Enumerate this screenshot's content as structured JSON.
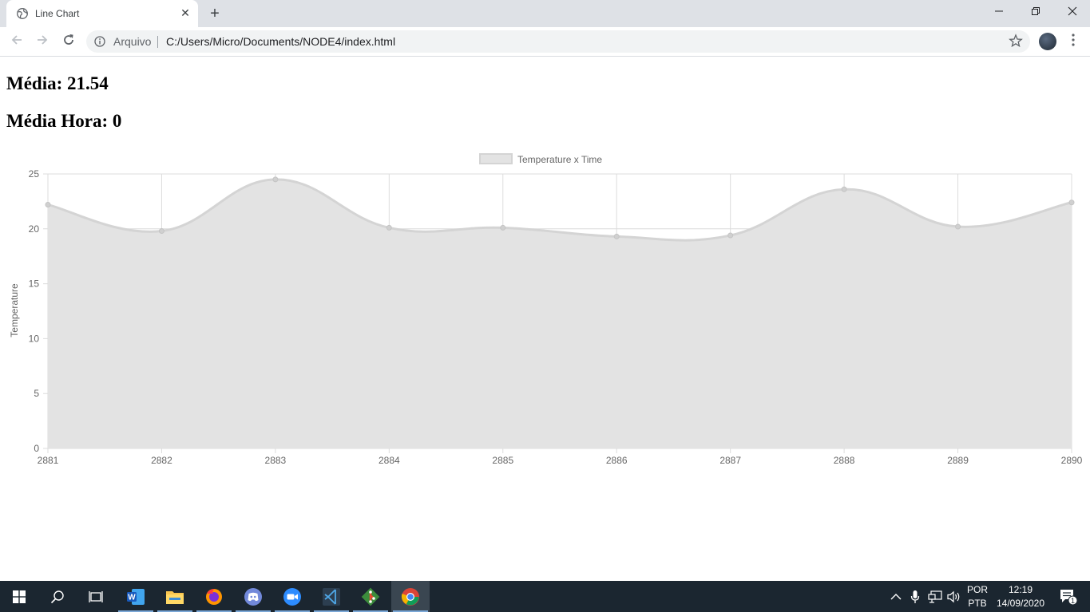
{
  "browser": {
    "tab_title": "Line Chart",
    "tab_close": "✕",
    "new_tab": "+",
    "omnibox_scheme": "Arquivo",
    "omnibox_url": "C:/Users/Micro/Documents/NODE4/index.html"
  },
  "page": {
    "media_text": "Média: 21.54",
    "media_hora_text": "Média Hora: 0"
  },
  "chart_data": {
    "type": "line",
    "legend_label": "Temperature x Time",
    "ylabel": "Temperature",
    "xlabel": "",
    "x": [
      2881,
      2882,
      2883,
      2884,
      2885,
      2886,
      2887,
      2888,
      2889,
      2890
    ],
    "series": [
      {
        "name": "Temperature x Time",
        "values": [
          22.2,
          19.8,
          24.5,
          20.1,
          20.1,
          19.3,
          19.4,
          23.6,
          20.2,
          22.4
        ]
      }
    ],
    "ylim": [
      0,
      25
    ],
    "yticks": [
      0,
      5,
      10,
      15,
      20,
      25
    ],
    "fill": true,
    "grid": true,
    "legend_position": "top",
    "colors": {
      "line": "#d9d9d9",
      "fill": "#e3e3e3",
      "grid": "#dcdcdc",
      "tick_text": "#666666"
    }
  },
  "taskbar": {
    "lang_top": "POR",
    "lang_bottom": "PTB",
    "time": "12:19",
    "date": "14/09/2020",
    "notification_count": "1",
    "apps": [
      "start-icon",
      "search-icon",
      "task-view-icon",
      "word-icon",
      "file-explorer-icon",
      "firefox-icon",
      "discord-icon",
      "zoom-icon",
      "vscode-icon",
      "git-icon",
      "chrome-icon"
    ]
  }
}
